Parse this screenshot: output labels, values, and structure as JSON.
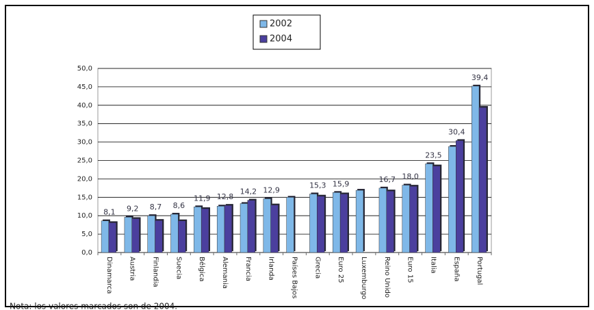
{
  "chart_data": {
    "type": "bar",
    "categories": [
      "Dinamarca",
      "Austria",
      "Finlandia",
      "Suecia",
      "Bélgica",
      "Alemania",
      "Francia",
      "Irlanda",
      "Países Bajos",
      "Grecia",
      "Euro 25",
      "Luxemburgo",
      "Reino Unido",
      "Euro 15",
      "Italia",
      "España",
      "Portugal"
    ],
    "series": [
      {
        "name": "2002",
        "color": "#7fb8e8",
        "values": [
          8.6,
          9.6,
          10.0,
          10.4,
          12.4,
          12.6,
          13.3,
          14.6,
          15.0,
          15.9,
          16.3,
          16.9,
          17.5,
          18.3,
          24.1,
          28.8,
          45.2
        ]
      },
      {
        "name": "2004",
        "color": "#4b3f9e",
        "values": [
          8.1,
          9.2,
          8.7,
          8.6,
          11.9,
          12.8,
          14.2,
          12.9,
          null,
          15.3,
          15.9,
          null,
          16.7,
          18.0,
          23.5,
          30.4,
          39.4
        ],
        "value_labels": [
          "8,1",
          "9,2",
          "8,7",
          "8,6",
          "11,9",
          "12,8",
          "14,2",
          "12,9",
          null,
          "15,3",
          "15,9",
          null,
          "16,7",
          "18,0",
          "23,5",
          "30,4",
          "39,4"
        ]
      }
    ],
    "ylim": [
      0,
      50
    ],
    "yticks": [
      {
        "value": 0,
        "label": "0,0"
      },
      {
        "value": 5,
        "label": "5,0"
      },
      {
        "value": 10,
        "label": "10,0"
      },
      {
        "value": 15,
        "label": "15,0"
      },
      {
        "value": 20,
        "label": "20,0"
      },
      {
        "value": 25,
        "label": "25,0"
      },
      {
        "value": 30,
        "label": "30,0"
      },
      {
        "value": 35,
        "label": "35,0"
      },
      {
        "value": 40,
        "label": "40,0"
      },
      {
        "value": 45,
        "label": "45,0"
      },
      {
        "value": 50,
        "label": "50,0"
      }
    ],
    "grid": true,
    "legend": "top",
    "note": "Nota: los valores marcados son de 2004."
  }
}
